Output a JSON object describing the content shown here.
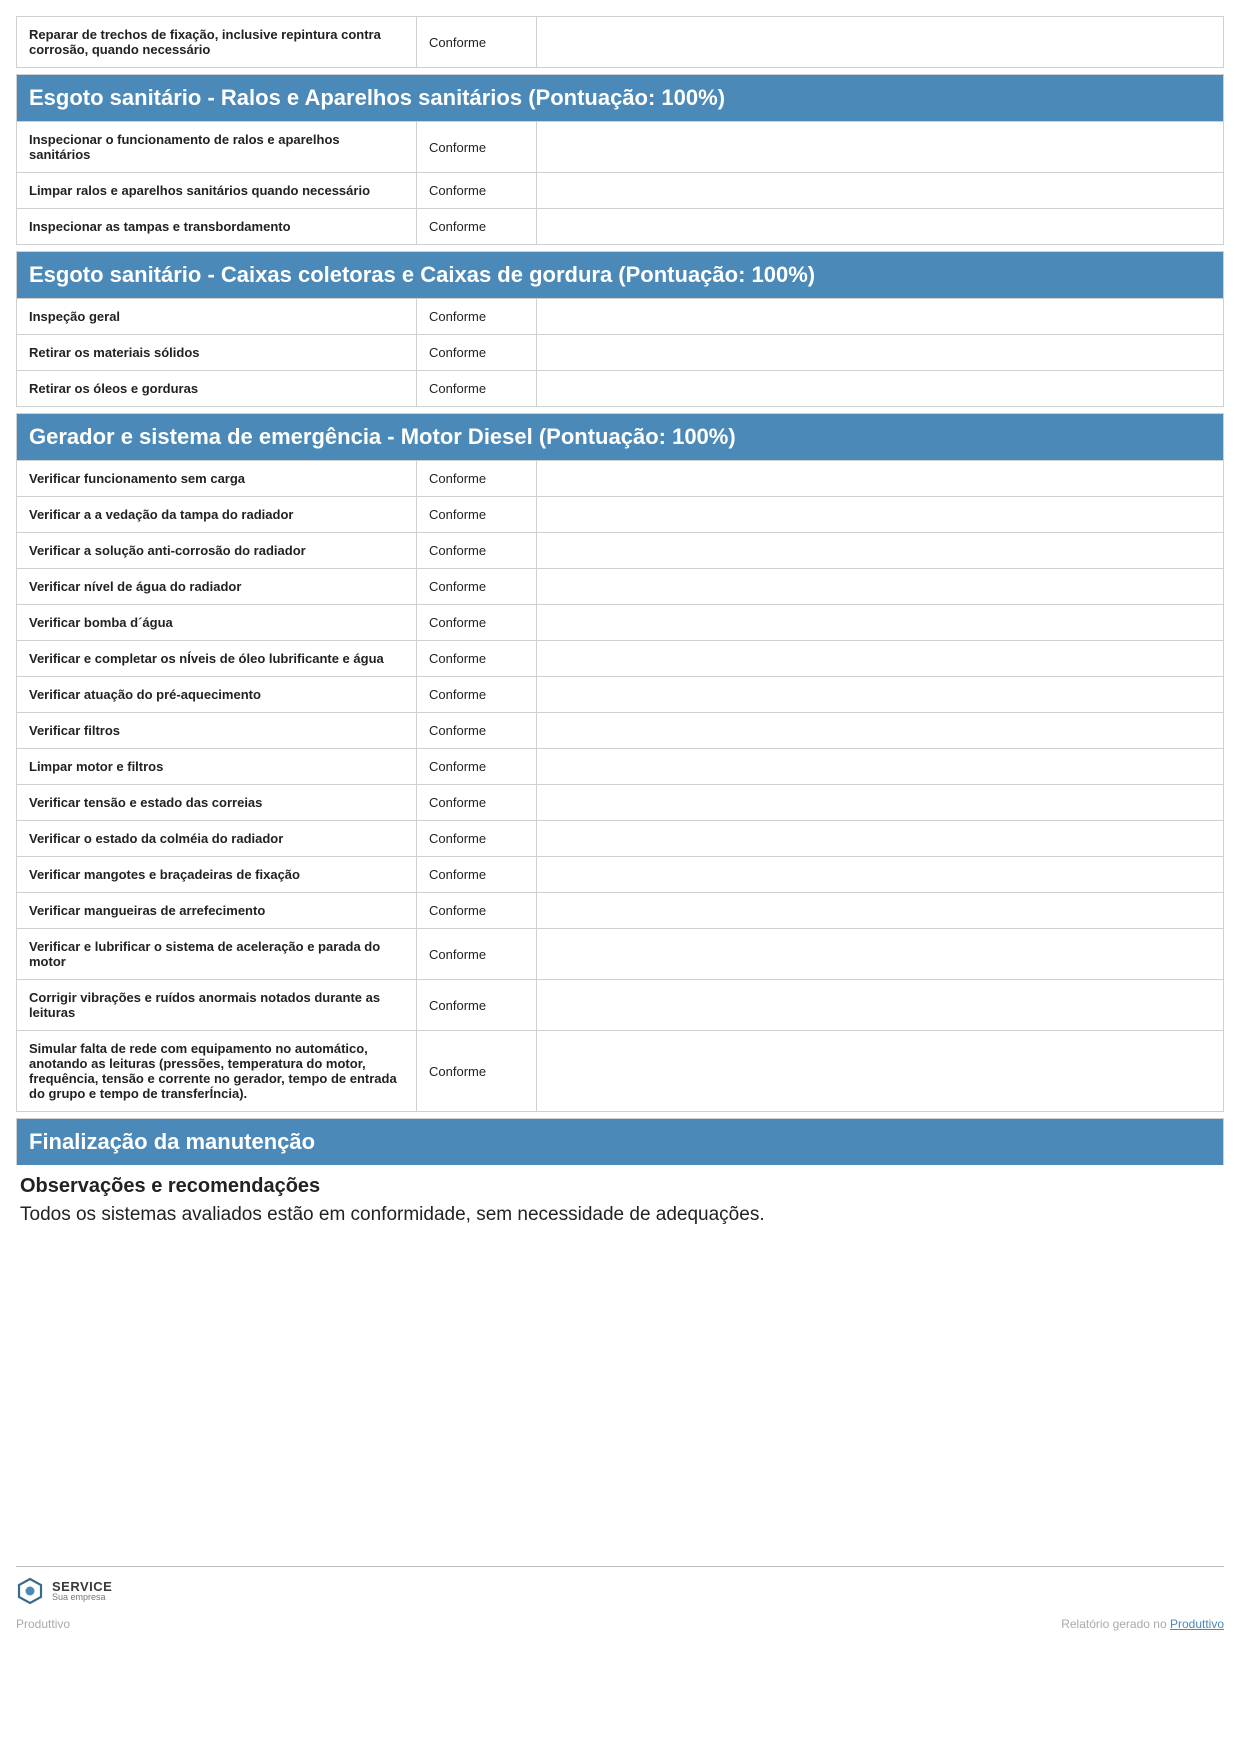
{
  "colors": {
    "header_bg": "#4a89b8",
    "header_text": "#ffffff",
    "border": "#d0d0d0",
    "footer_gray": "#aaaaaa",
    "link": "#4a89b8"
  },
  "top_orphan_row": {
    "label": "Reparar de trechos de fixação, inclusive repintura contra corrosão, quando necessário",
    "status": "Conforme"
  },
  "sections": [
    {
      "title": "Esgoto sanitário - Ralos e Aparelhos sanitários (Pontuação: 100%)",
      "rows": [
        {
          "label": "Inspecionar o funcionamento de ralos e aparelhos sanitários",
          "status": "Conforme"
        },
        {
          "label": "Limpar ralos e aparelhos sanitários quando necessário",
          "status": "Conforme"
        },
        {
          "label": "Inspecionar as tampas e transbordamento",
          "status": "Conforme"
        }
      ]
    },
    {
      "title": "Esgoto sanitário - Caixas coletoras e Caixas de gordura (Pontuação: 100%)",
      "rows": [
        {
          "label": "Inspeção geral",
          "status": "Conforme"
        },
        {
          "label": "Retirar os materiais sólidos",
          "status": "Conforme"
        },
        {
          "label": "Retirar os óleos e gorduras",
          "status": "Conforme"
        }
      ]
    },
    {
      "title": "Gerador e sistema de emergência - Motor Diesel (Pontuação: 100%)",
      "rows": [
        {
          "label": "Verificar funcionamento sem carga",
          "status": "Conforme"
        },
        {
          "label": "Verificar a a vedação da tampa do radiador",
          "status": "Conforme"
        },
        {
          "label": "Verificar a solução anti-corrosão do radiador",
          "status": "Conforme"
        },
        {
          "label": "Verificar nível de água do radiador",
          "status": "Conforme"
        },
        {
          "label": "Verificar bomba d´água",
          "status": "Conforme"
        },
        {
          "label": "Verificar e completar os nÍveis de óleo lubrificante e água",
          "status": "Conforme"
        },
        {
          "label": "Verificar atuação do pré-aquecimento",
          "status": "Conforme"
        },
        {
          "label": "Verificar filtros",
          "status": "Conforme"
        },
        {
          "label": "Limpar motor e filtros",
          "status": "Conforme"
        },
        {
          "label": "Verificar tensão e estado das correias",
          "status": "Conforme"
        },
        {
          "label": "Verificar o estado da colméia do radiador",
          "status": "Conforme"
        },
        {
          "label": "Verificar mangotes e braçadeiras de fixação",
          "status": "Conforme"
        },
        {
          "label": "Verificar mangueiras de arrefecimento",
          "status": "Conforme"
        },
        {
          "label": "Verificar e lubrificar o sistema de aceleração e parada do motor",
          "status": "Conforme"
        },
        {
          "label": "Corrigir vibrações e ruídos anormais notados durante as leituras",
          "status": "Conforme"
        },
        {
          "label": "Simular falta de rede com equipamento no automático, anotando as leituras (pressões, temperatura do motor, frequência, tensão e corrente no gerador, tempo de entrada do grupo e tempo de transferÍncia).",
          "status": "Conforme"
        }
      ]
    }
  ],
  "final": {
    "header": "Finalização da manutenção",
    "obs_title": "Observações e recomendações",
    "obs_text": "Todos os sistemas avaliados estão em conformidade, sem necessidade de adequações."
  },
  "footer": {
    "brand_line1": "SERVICE",
    "brand_line2": "Sua empresa",
    "left_text": "Produttivo",
    "right_prefix": "Relatório gerado no ",
    "right_link": "Produttivo"
  }
}
